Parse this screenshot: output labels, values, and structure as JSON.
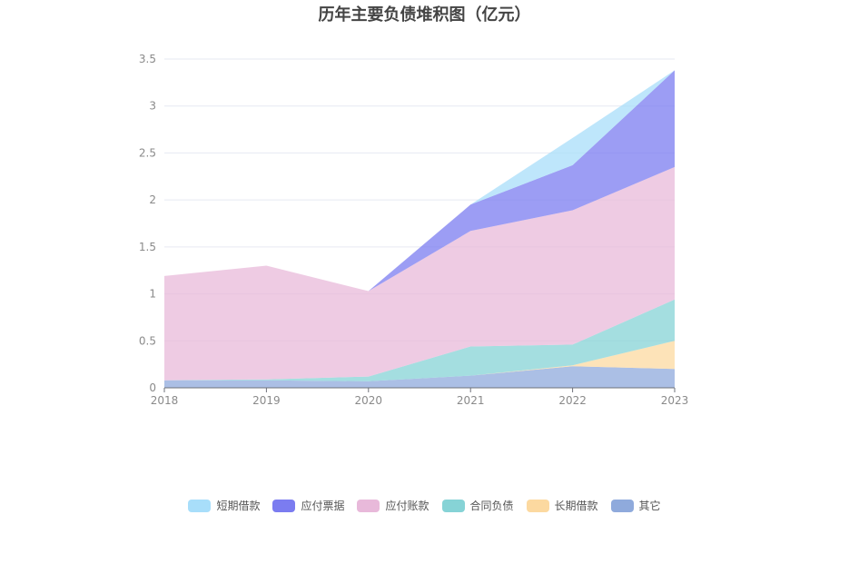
{
  "chart_data": {
    "type": "area",
    "stacked": true,
    "title": "历年主要负债堆积图（亿元）",
    "categories": [
      "2018",
      "2019",
      "2020",
      "2021",
      "2022",
      "2023"
    ],
    "ylim": [
      0,
      3.5
    ],
    "yticks": [
      "0",
      "0.5",
      "1",
      "1.5",
      "2",
      "2.5",
      "3",
      "3.5"
    ],
    "grid": true,
    "legend_position": "bottom",
    "series": [
      {
        "name": "其它",
        "color": "#8faadc",
        "values": [
          0.08,
          0.08,
          0.07,
          0.13,
          0.23,
          0.2
        ]
      },
      {
        "name": "长期借款",
        "color": "#fcd9a0",
        "values": [
          0.0,
          0.0,
          0.0,
          0.0,
          0.01,
          0.3
        ]
      },
      {
        "name": "合同负债",
        "color": "#86d3d6",
        "values": [
          0.0,
          0.01,
          0.05,
          0.31,
          0.22,
          0.44
        ]
      },
      {
        "name": "应付账款",
        "color": "#e8b9da",
        "values": [
          1.11,
          1.21,
          0.91,
          1.23,
          1.43,
          1.41
        ]
      },
      {
        "name": "应付票据",
        "color": "#7b7cf0",
        "values": [
          0.0,
          0.0,
          0.0,
          0.28,
          0.48,
          1.03
        ]
      },
      {
        "name": "短期借款",
        "color": "#a8defa",
        "values": [
          0.0,
          0.0,
          0.0,
          0.0,
          0.29,
          0.0
        ]
      }
    ],
    "legend_order": [
      "短期借款",
      "应付票据",
      "应付账款",
      "合同负债",
      "长期借款",
      "其它"
    ]
  }
}
